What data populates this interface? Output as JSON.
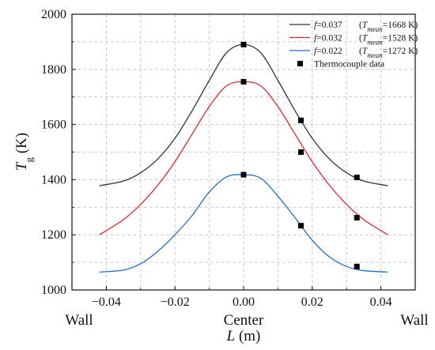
{
  "chart_data": {
    "type": "line",
    "ylabel": {
      "main": "T",
      "sub": "g",
      "unit": " (K)"
    },
    "xlabel": {
      "main": "L",
      "unit": " (m)"
    },
    "xlim": [
      -0.05,
      0.05
    ],
    "ylim": [
      1000,
      2000
    ],
    "xticks": [
      -0.04,
      -0.02,
      0.0,
      0.02,
      0.04
    ],
    "xtick_labels": [
      "−0.04",
      "−0.02",
      "0.00",
      "0.02",
      "0.04"
    ],
    "yticks": [
      1000,
      1200,
      1400,
      1600,
      1800,
      2000
    ],
    "ytick_labels": [
      "1000",
      "1200",
      "1400",
      "1600",
      "1800",
      "2000"
    ],
    "grid": true,
    "legend_position": "top-right",
    "below_axis_labels": [
      "Wall",
      "Center",
      "Wall"
    ],
    "series": [
      {
        "color": "#333333",
        "legend": {
          "f_symbol": "f",
          "f_value": "=0.037",
          "t_symbol": "T",
          "t_sub": "mean",
          "t_value": "=1668 K)"
        },
        "x": [
          -0.042,
          -0.035,
          -0.03,
          -0.025,
          -0.02,
          -0.015,
          -0.01,
          -0.005,
          0.0,
          0.005,
          0.01,
          0.015,
          0.02,
          0.025,
          0.03,
          0.035,
          0.042
        ],
        "y": [
          1378,
          1395,
          1425,
          1475,
          1550,
          1650,
          1760,
          1860,
          1890,
          1860,
          1760,
          1650,
          1550,
          1475,
          1425,
          1395,
          1378
        ]
      },
      {
        "color": "#e0262a",
        "legend": {
          "f_symbol": "f",
          "f_value": "=0.032",
          "t_symbol": "T",
          "t_sub": "mean",
          "t_value": "=1528 K)"
        },
        "x": [
          -0.042,
          -0.035,
          -0.03,
          -0.025,
          -0.02,
          -0.015,
          -0.01,
          -0.005,
          0.0,
          0.005,
          0.01,
          0.015,
          0.02,
          0.025,
          0.03,
          0.035,
          0.042
        ],
        "y": [
          1200,
          1255,
          1310,
          1380,
          1465,
          1565,
          1665,
          1740,
          1755,
          1740,
          1665,
          1565,
          1465,
          1380,
          1310,
          1255,
          1200
        ]
      },
      {
        "color": "#1f6fc8",
        "legend": {
          "f_symbol": "f",
          "f_value": "=0.022",
          "t_symbol": "T",
          "t_sub": "mean",
          "t_value": "=1272 K)"
        },
        "x": [
          -0.042,
          -0.035,
          -0.03,
          -0.025,
          -0.02,
          -0.015,
          -0.01,
          -0.005,
          0.0,
          0.005,
          0.01,
          0.015,
          0.02,
          0.025,
          0.03,
          0.035,
          0.042
        ],
        "y": [
          1065,
          1072,
          1095,
          1140,
          1200,
          1270,
          1355,
          1410,
          1418,
          1405,
          1340,
          1262,
          1180,
          1120,
          1085,
          1070,
          1065
        ]
      }
    ],
    "thermocouple": {
      "legend_label": "Thermocouple data",
      "x": [
        0.0,
        0.0,
        0.0,
        0.0167,
        0.0167,
        0.0167,
        0.033,
        0.033,
        0.033
      ],
      "y": [
        1890,
        1755,
        1418,
        1615,
        1500,
        1233,
        1408,
        1262,
        1085
      ]
    }
  }
}
